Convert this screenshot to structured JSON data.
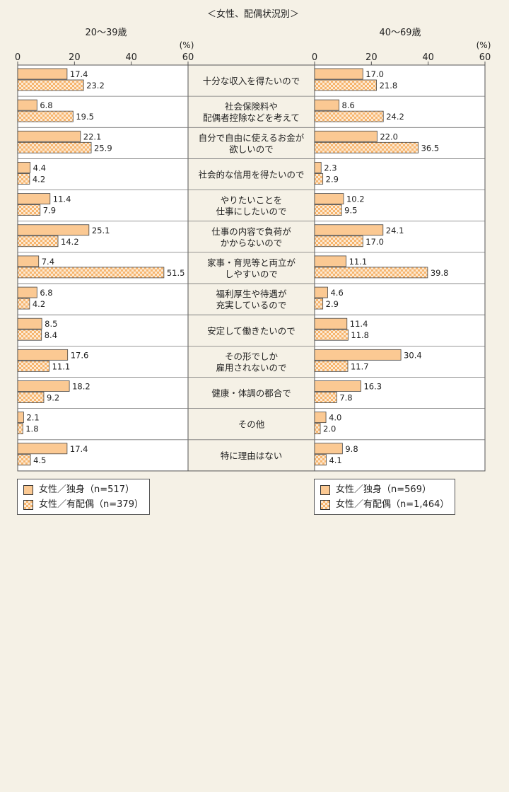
{
  "chart_data": {
    "type": "bar",
    "orientation": "horizontal",
    "title": "＜女性、配偶状況別＞",
    "unit_label": "(%)",
    "xlim": [
      0,
      60
    ],
    "xticks": [
      "0",
      "20",
      "40",
      "60"
    ],
    "categories": [
      [
        "十分な収入を得たいので"
      ],
      [
        "社会保険料や",
        "配偶者控除などを考えて"
      ],
      [
        "自分で自由に使えるお金が",
        "欲しいので"
      ],
      [
        "社会的な信用を得たいので"
      ],
      [
        "やりたいことを",
        "仕事にしたいので"
      ],
      [
        "仕事の内容で負荷が",
        "かからないので"
      ],
      [
        "家事・育児等と両立が",
        "しやすいので"
      ],
      [
        "福利厚生や待遇が",
        "充実しているので"
      ],
      [
        "安定して働きたいので"
      ],
      [
        "その形でしか",
        "雇用されないので"
      ],
      [
        "健康・体調の都合で"
      ],
      [
        "その他"
      ],
      [
        "特に理由はない"
      ]
    ],
    "panels": [
      {
        "age_group": "20～39歳",
        "series": [
          {
            "name": "女性／独身",
            "n": "（n=517）",
            "values": [
              17.4,
              6.8,
              22.1,
              4.4,
              11.4,
              25.1,
              7.4,
              6.8,
              8.5,
              17.6,
              18.2,
              2.1,
              17.4
            ],
            "labels": [
              "17.4",
              "6.8",
              "22.1",
              "4.4",
              "11.4",
              "25.1",
              "7.4",
              "6.8",
              "8.5",
              "17.6",
              "18.2",
              "2.1",
              "17.4"
            ]
          },
          {
            "name": "女性／有配偶",
            "n": "（n=379）",
            "values": [
              23.2,
              19.5,
              25.9,
              4.2,
              7.9,
              14.2,
              51.5,
              4.2,
              8.4,
              11.1,
              9.2,
              1.8,
              4.5
            ],
            "labels": [
              "23.2",
              "19.5",
              "25.9",
              "4.2",
              "7.9",
              "14.2",
              "51.5",
              "4.2",
              "8.4",
              "11.1",
              "9.2",
              "1.8",
              "4.5"
            ]
          }
        ]
      },
      {
        "age_group": "40～69歳",
        "series": [
          {
            "name": "女性／独身",
            "n": "（n=569）",
            "values": [
              17.0,
              8.6,
              22.0,
              2.3,
              10.2,
              24.1,
              11.1,
              4.6,
              11.4,
              30.4,
              16.3,
              4.0,
              9.8
            ],
            "labels": [
              "17.0",
              "8.6",
              "22.0",
              "2.3",
              "10.2",
              "24.1",
              "11.1",
              "4.6",
              "11.4",
              "30.4",
              "16.3",
              "4.0",
              "9.8"
            ]
          },
          {
            "name": "女性／有配偶",
            "n": "（n=1,464）",
            "values": [
              21.8,
              24.2,
              36.5,
              2.9,
              9.5,
              17.0,
              39.8,
              2.9,
              11.8,
              11.7,
              7.8,
              2.0,
              4.1
            ],
            "labels": [
              "21.8",
              "24.2",
              "36.5",
              "2.9",
              "9.5",
              "17.0",
              "39.8",
              "2.9",
              "11.8",
              "11.7",
              "7.8",
              "2.0",
              "4.1"
            ]
          }
        ]
      }
    ],
    "colors": {
      "single": "#fbc993",
      "married_light": "#fce9d2",
      "married_dark": "#f7b56e",
      "label_bg": "#f5f1e6",
      "plot_bg": "#ffffff"
    }
  }
}
